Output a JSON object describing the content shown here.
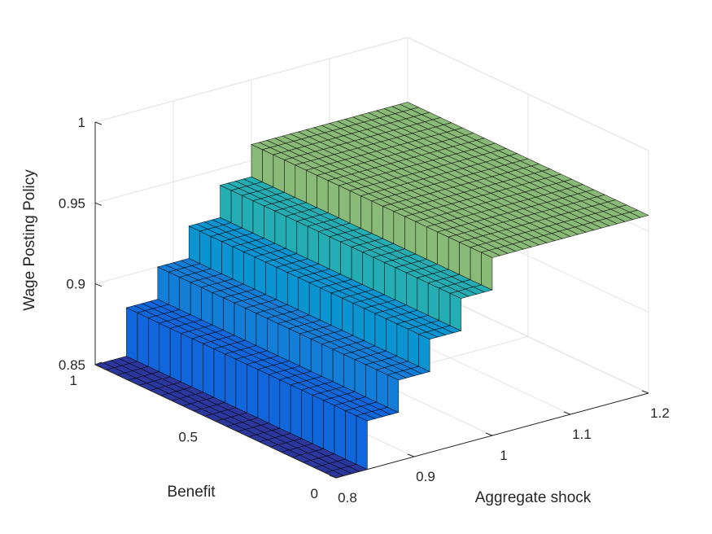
{
  "chart_data": {
    "type": "surface3d",
    "title": "",
    "xlabel": "Aggregate shock",
    "ylabel": "Benefit",
    "zlabel": "Wage Posting Policy",
    "xlim": [
      0.8,
      1.2
    ],
    "ylim": [
      0,
      1
    ],
    "zlim": [
      0.85,
      1
    ],
    "x_ticks": [
      "0.8",
      "0.9",
      "1",
      "1.1",
      "1.2"
    ],
    "y_ticks": [
      "0",
      "0.5",
      "1"
    ],
    "z_ticks": [
      "0.85",
      "0.9",
      "0.95",
      "1"
    ],
    "grid": true,
    "colormap": "parula",
    "surface_steps": [
      {
        "x_start": 0.8,
        "x_end": 0.84,
        "z": 0.85
      },
      {
        "x_start": 0.84,
        "x_end": 0.88,
        "z": 0.88
      },
      {
        "x_start": 0.88,
        "x_end": 0.92,
        "z": 0.9
      },
      {
        "x_start": 0.92,
        "x_end": 0.96,
        "z": 0.92
      },
      {
        "x_start": 0.96,
        "x_end": 1.0,
        "z": 0.94
      },
      {
        "x_start": 1.0,
        "x_end": 1.2,
        "z": 0.96
      }
    ],
    "notes_values": {
      "z_levels": [
        0.85,
        0.88,
        0.9,
        0.92,
        0.94,
        0.96
      ],
      "x_edges": [
        0.8,
        0.84,
        0.88,
        0.92,
        0.96,
        1.0,
        1.2
      ],
      "benefit_range": [
        0,
        1
      ]
    }
  }
}
